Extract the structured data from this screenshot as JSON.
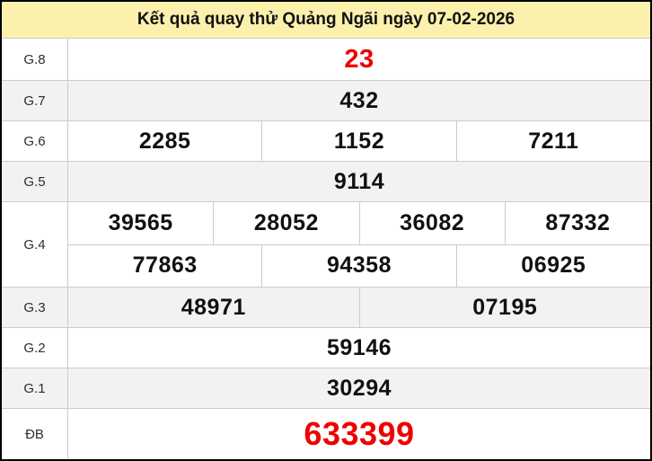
{
  "colors": {
    "header_bg": "#fcf0ad",
    "highlight_red": "#ee0000",
    "row_alt_bg": "#f2f2f2",
    "cell_border": "#cccccc",
    "outer_border": "#000000"
  },
  "header": {
    "title": "Kết quả quay thử Quảng Ngãi ngày 07-02-2026"
  },
  "rows": [
    {
      "label": "G.8",
      "lines": [
        [
          "23"
        ]
      ]
    },
    {
      "label": "G.7",
      "lines": [
        [
          "432"
        ]
      ]
    },
    {
      "label": "G.6",
      "lines": [
        [
          "2285",
          "1152",
          "7211"
        ]
      ]
    },
    {
      "label": "G.5",
      "lines": [
        [
          "9114"
        ]
      ]
    },
    {
      "label": "G.4",
      "lines": [
        [
          "39565",
          "28052",
          "36082",
          "87332"
        ],
        [
          "77863",
          "94358",
          "06925"
        ]
      ]
    },
    {
      "label": "G.3",
      "lines": [
        [
          "48971",
          "07195"
        ]
      ]
    },
    {
      "label": "G.2",
      "lines": [
        [
          "59146"
        ]
      ]
    },
    {
      "label": "G.1",
      "lines": [
        [
          "30294"
        ]
      ]
    },
    {
      "label": "ĐB",
      "lines": [
        [
          "633399"
        ]
      ]
    }
  ]
}
